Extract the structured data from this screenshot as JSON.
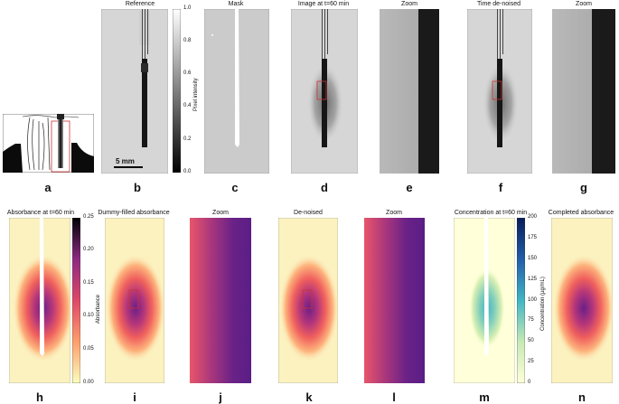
{
  "titles": {
    "b": "Reference",
    "c": "Mask",
    "d": "Image at t=60 min",
    "e": "Zoom",
    "f": "Time de-noised",
    "g": "Zoom",
    "h": "Absorbance at t=60 min",
    "i": "Dummy-filled absorbance",
    "j": "Zoom",
    "k": "De-noised",
    "l": "Zoom",
    "m": "Concentration at t=60 min",
    "n": "Completed absorbance"
  },
  "labels": [
    "a",
    "b",
    "c",
    "d",
    "e",
    "f",
    "g",
    "h",
    "i",
    "j",
    "k",
    "l",
    "m",
    "n"
  ],
  "scale_bar": "5 mm",
  "colorbar_intensity": {
    "label": "Pixel intensity",
    "ticks": [
      "1.0",
      "0.8",
      "0.6",
      "0.4",
      "0.2",
      "0.0"
    ]
  },
  "colorbar_absorbance": {
    "label": "Absorbance",
    "ticks": [
      "0.25",
      "0.20",
      "0.15",
      "0.10",
      "0.05",
      "0.00"
    ]
  },
  "colorbar_concentration": {
    "label": "Concentration (µg/mL)",
    "ticks": [
      "200",
      "175",
      "150",
      "125",
      "100",
      "75",
      "50",
      "25",
      "0"
    ]
  },
  "colors": {
    "box": "#cc2222",
    "dark": "#111111",
    "magma_high": "#3b0f70",
    "magma_mid": "#b5367a",
    "magma_low": "#fcfdbf",
    "ygb_high": "#081d58",
    "ygb_low": "#ffffd9"
  }
}
